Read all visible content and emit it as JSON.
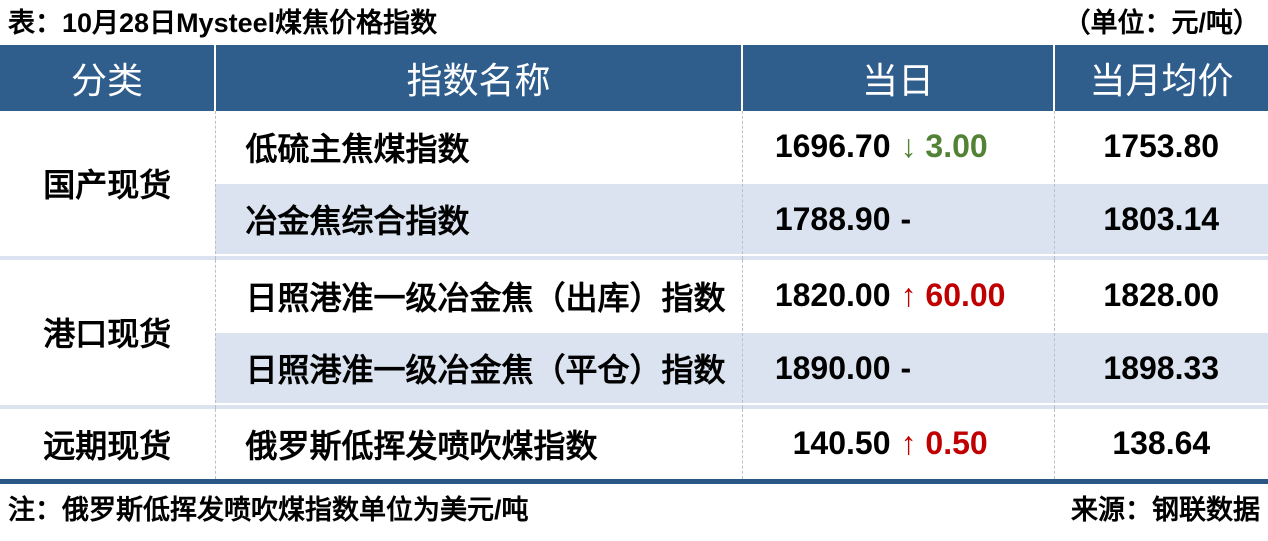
{
  "title": "表：10月28日Mysteel煤焦价格指数",
  "unit_label": "（单位：元/吨）",
  "chart_data": {
    "type": "table",
    "title": "10月28日Mysteel煤焦价格指数",
    "unit": "元/吨",
    "columns": [
      "分类",
      "指数名称",
      "当日",
      "当月均价"
    ],
    "groups": [
      {
        "category": "国产现货",
        "rows": [
          {
            "name": "低硫主焦煤指数",
            "daily": "1696.70",
            "change": "3.00",
            "direction": "down",
            "monthly_avg": "1753.80"
          },
          {
            "name": "冶金焦综合指数",
            "daily": "1788.90",
            "change": "-",
            "direction": "flat",
            "monthly_avg": "1803.14"
          }
        ]
      },
      {
        "category": "港口现货",
        "rows": [
          {
            "name": "日照港准一级冶金焦（出库）指数",
            "daily": "1820.00",
            "change": "60.00",
            "direction": "up",
            "monthly_avg": "1828.00"
          },
          {
            "name": "日照港准一级冶金焦（平仓）指数",
            "daily": "1890.00",
            "change": "-",
            "direction": "flat",
            "monthly_avg": "1898.33"
          }
        ]
      },
      {
        "category": "远期现货",
        "rows": [
          {
            "name": "俄罗斯低挥发喷吹煤指数",
            "daily": "140.50",
            "change": "0.50",
            "direction": "up",
            "monthly_avg": "138.64"
          }
        ]
      }
    ],
    "note": "俄罗斯低挥发喷吹煤指数单位为美元/吨",
    "source": "钢联数据"
  },
  "symbols": {
    "up": "↑",
    "down": "↓"
  },
  "footer": {
    "note": "注：俄罗斯低挥发喷吹煤指数单位为美元/吨",
    "source": "来源：钢联数据"
  },
  "colors": {
    "header_bg": "#2F5D8C",
    "alt_row_bg": "#DAE3EF",
    "bottom_rule": "#2B5786",
    "up_red": "#C00000",
    "down_green": "#538135"
  }
}
